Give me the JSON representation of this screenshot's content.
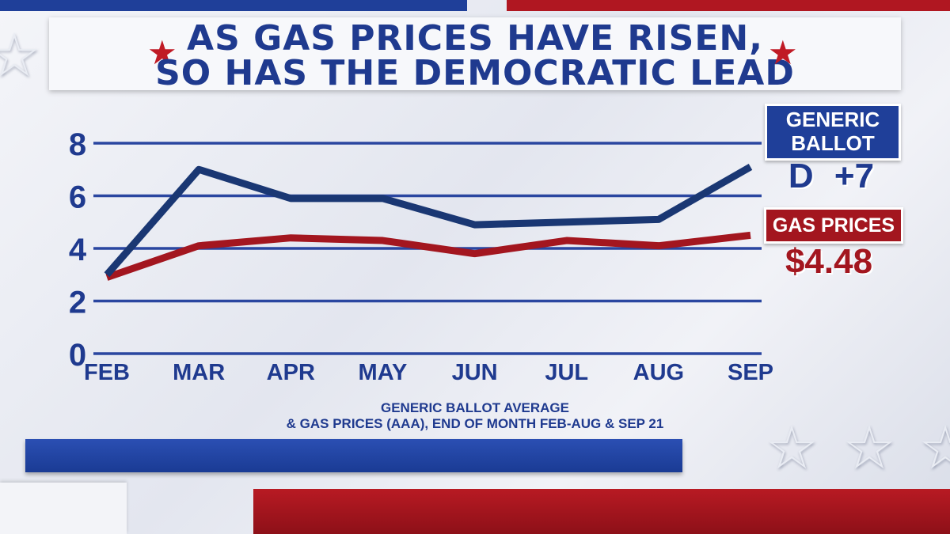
{
  "title": {
    "line1": "AS GAS PRICES HAVE RISEN,",
    "line2": "SO HAS THE DEMOCRATIC LEAD"
  },
  "legend": {
    "ballot_label_line1": "GENERIC",
    "ballot_label_line2": "BALLOT",
    "ballot_value": "D +7",
    "gas_label": "GAS PRICES",
    "gas_value": "$4.48"
  },
  "source": {
    "line1": "GENERIC BALLOT AVERAGE",
    "line2": "& GAS PRICES (AAA), END OF MONTH FEB-AUG & SEP 21"
  },
  "colors": {
    "ballot_line": "#1a3773",
    "gas_line": "#a3161f",
    "grid": "#2a46a0",
    "title_text": "#1f3a8f",
    "star": "#c01a25"
  },
  "icons": {
    "title_star": "★",
    "deco_star": "☆"
  },
  "chart_data": {
    "type": "line",
    "categories": [
      "FEB",
      "MAR",
      "APR",
      "MAY",
      "JUN",
      "JUL",
      "AUG",
      "SEP"
    ],
    "ylim": [
      0,
      8
    ],
    "yticks": [
      0,
      2,
      4,
      6,
      8
    ],
    "grid": true,
    "series": [
      {
        "key": "ballot",
        "values": [
          3.0,
          7.0,
          5.9,
          5.9,
          4.9,
          5.0,
          5.1,
          7.1
        ]
      },
      {
        "key": "gas",
        "values": [
          2.9,
          4.1,
          4.4,
          4.3,
          3.8,
          4.3,
          4.1,
          4.5
        ]
      }
    ]
  }
}
